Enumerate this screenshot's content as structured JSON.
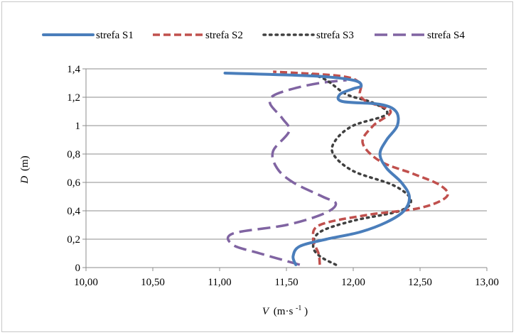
{
  "chart_data": {
    "type": "line",
    "xlabel_var": "V",
    "xlabel_unit": "(m·s",
    "xlabel_exp": "-1",
    "xlabel_close": ")",
    "ylabel_var": "D",
    "ylabel_unit": "(m)",
    "xlim": [
      10.0,
      13.0
    ],
    "ylim": [
      0,
      1.4
    ],
    "xticks": [
      10.0,
      10.5,
      11.0,
      11.5,
      12.0,
      12.5,
      13.0
    ],
    "xtick_labels": [
      "10,00",
      "10,50",
      "11,00",
      "11,50",
      "12,00",
      "12,50",
      "13,00"
    ],
    "yticks": [
      0,
      0.2,
      0.4,
      0.6,
      0.8,
      1.0,
      1.2,
      1.4
    ],
    "ytick_labels": [
      "0",
      "0,2",
      "0,4",
      "0,6",
      "0,8",
      "1",
      "1,2",
      "1,4"
    ],
    "grid": "horizontal",
    "legend_position": "top",
    "series": [
      {
        "name": "strefa S1",
        "color": "#4a7ebb",
        "dash": "solid",
        "points": [
          [
            11.57,
            0.02
          ],
          [
            11.55,
            0.08
          ],
          [
            11.6,
            0.15
          ],
          [
            11.8,
            0.2
          ],
          [
            12.05,
            0.25
          ],
          [
            12.25,
            0.32
          ],
          [
            12.38,
            0.4
          ],
          [
            12.42,
            0.5
          ],
          [
            12.36,
            0.6
          ],
          [
            12.25,
            0.7
          ],
          [
            12.2,
            0.8
          ],
          [
            12.25,
            0.9
          ],
          [
            12.33,
            1.0
          ],
          [
            12.32,
            1.1
          ],
          [
            12.2,
            1.15
          ],
          [
            11.92,
            1.17
          ],
          [
            11.9,
            1.22
          ],
          [
            12.0,
            1.26
          ],
          [
            12.06,
            1.28
          ],
          [
            12.0,
            1.32
          ],
          [
            11.7,
            1.35
          ],
          [
            11.04,
            1.37
          ]
        ]
      },
      {
        "name": "strefa S2",
        "color": "#c0504d",
        "dash": "dashed",
        "points": [
          [
            11.75,
            0.02
          ],
          [
            11.74,
            0.1
          ],
          [
            11.7,
            0.2
          ],
          [
            11.75,
            0.3
          ],
          [
            12.1,
            0.37
          ],
          [
            12.5,
            0.42
          ],
          [
            12.7,
            0.5
          ],
          [
            12.65,
            0.58
          ],
          [
            12.45,
            0.66
          ],
          [
            12.2,
            0.75
          ],
          [
            12.07,
            0.88
          ],
          [
            12.15,
            1.0
          ],
          [
            12.28,
            1.1
          ],
          [
            12.1,
            1.17
          ],
          [
            12.05,
            1.22
          ],
          [
            12.05,
            1.3
          ],
          [
            11.9,
            1.35
          ],
          [
            11.4,
            1.38
          ]
        ]
      },
      {
        "name": "strefa S3",
        "color": "#404040",
        "dash": "dotted",
        "points": [
          [
            11.87,
            0.02
          ],
          [
            11.75,
            0.08
          ],
          [
            11.7,
            0.15
          ],
          [
            11.75,
            0.25
          ],
          [
            12.0,
            0.33
          ],
          [
            12.35,
            0.4
          ],
          [
            12.43,
            0.48
          ],
          [
            12.3,
            0.58
          ],
          [
            12.0,
            0.68
          ],
          [
            11.85,
            0.8
          ],
          [
            11.87,
            0.9
          ],
          [
            12.0,
            1.0
          ],
          [
            12.25,
            1.08
          ],
          [
            12.15,
            1.16
          ],
          [
            11.95,
            1.22
          ],
          [
            11.8,
            1.32
          ],
          [
            11.67,
            1.37
          ]
        ]
      },
      {
        "name": "strefa S4",
        "color": "#8064a2",
        "dash": "longdash",
        "points": [
          [
            11.6,
            0.02
          ],
          [
            11.3,
            0.1
          ],
          [
            11.1,
            0.16
          ],
          [
            11.1,
            0.24
          ],
          [
            11.5,
            0.3
          ],
          [
            11.78,
            0.38
          ],
          [
            11.87,
            0.45
          ],
          [
            11.77,
            0.5
          ],
          [
            11.55,
            0.6
          ],
          [
            11.43,
            0.7
          ],
          [
            11.4,
            0.82
          ],
          [
            11.52,
            0.96
          ],
          [
            11.47,
            1.05
          ],
          [
            11.38,
            1.15
          ],
          [
            11.4,
            1.21
          ],
          [
            11.55,
            1.26
          ],
          [
            11.75,
            1.3
          ],
          [
            11.95,
            1.32
          ]
        ]
      }
    ]
  }
}
